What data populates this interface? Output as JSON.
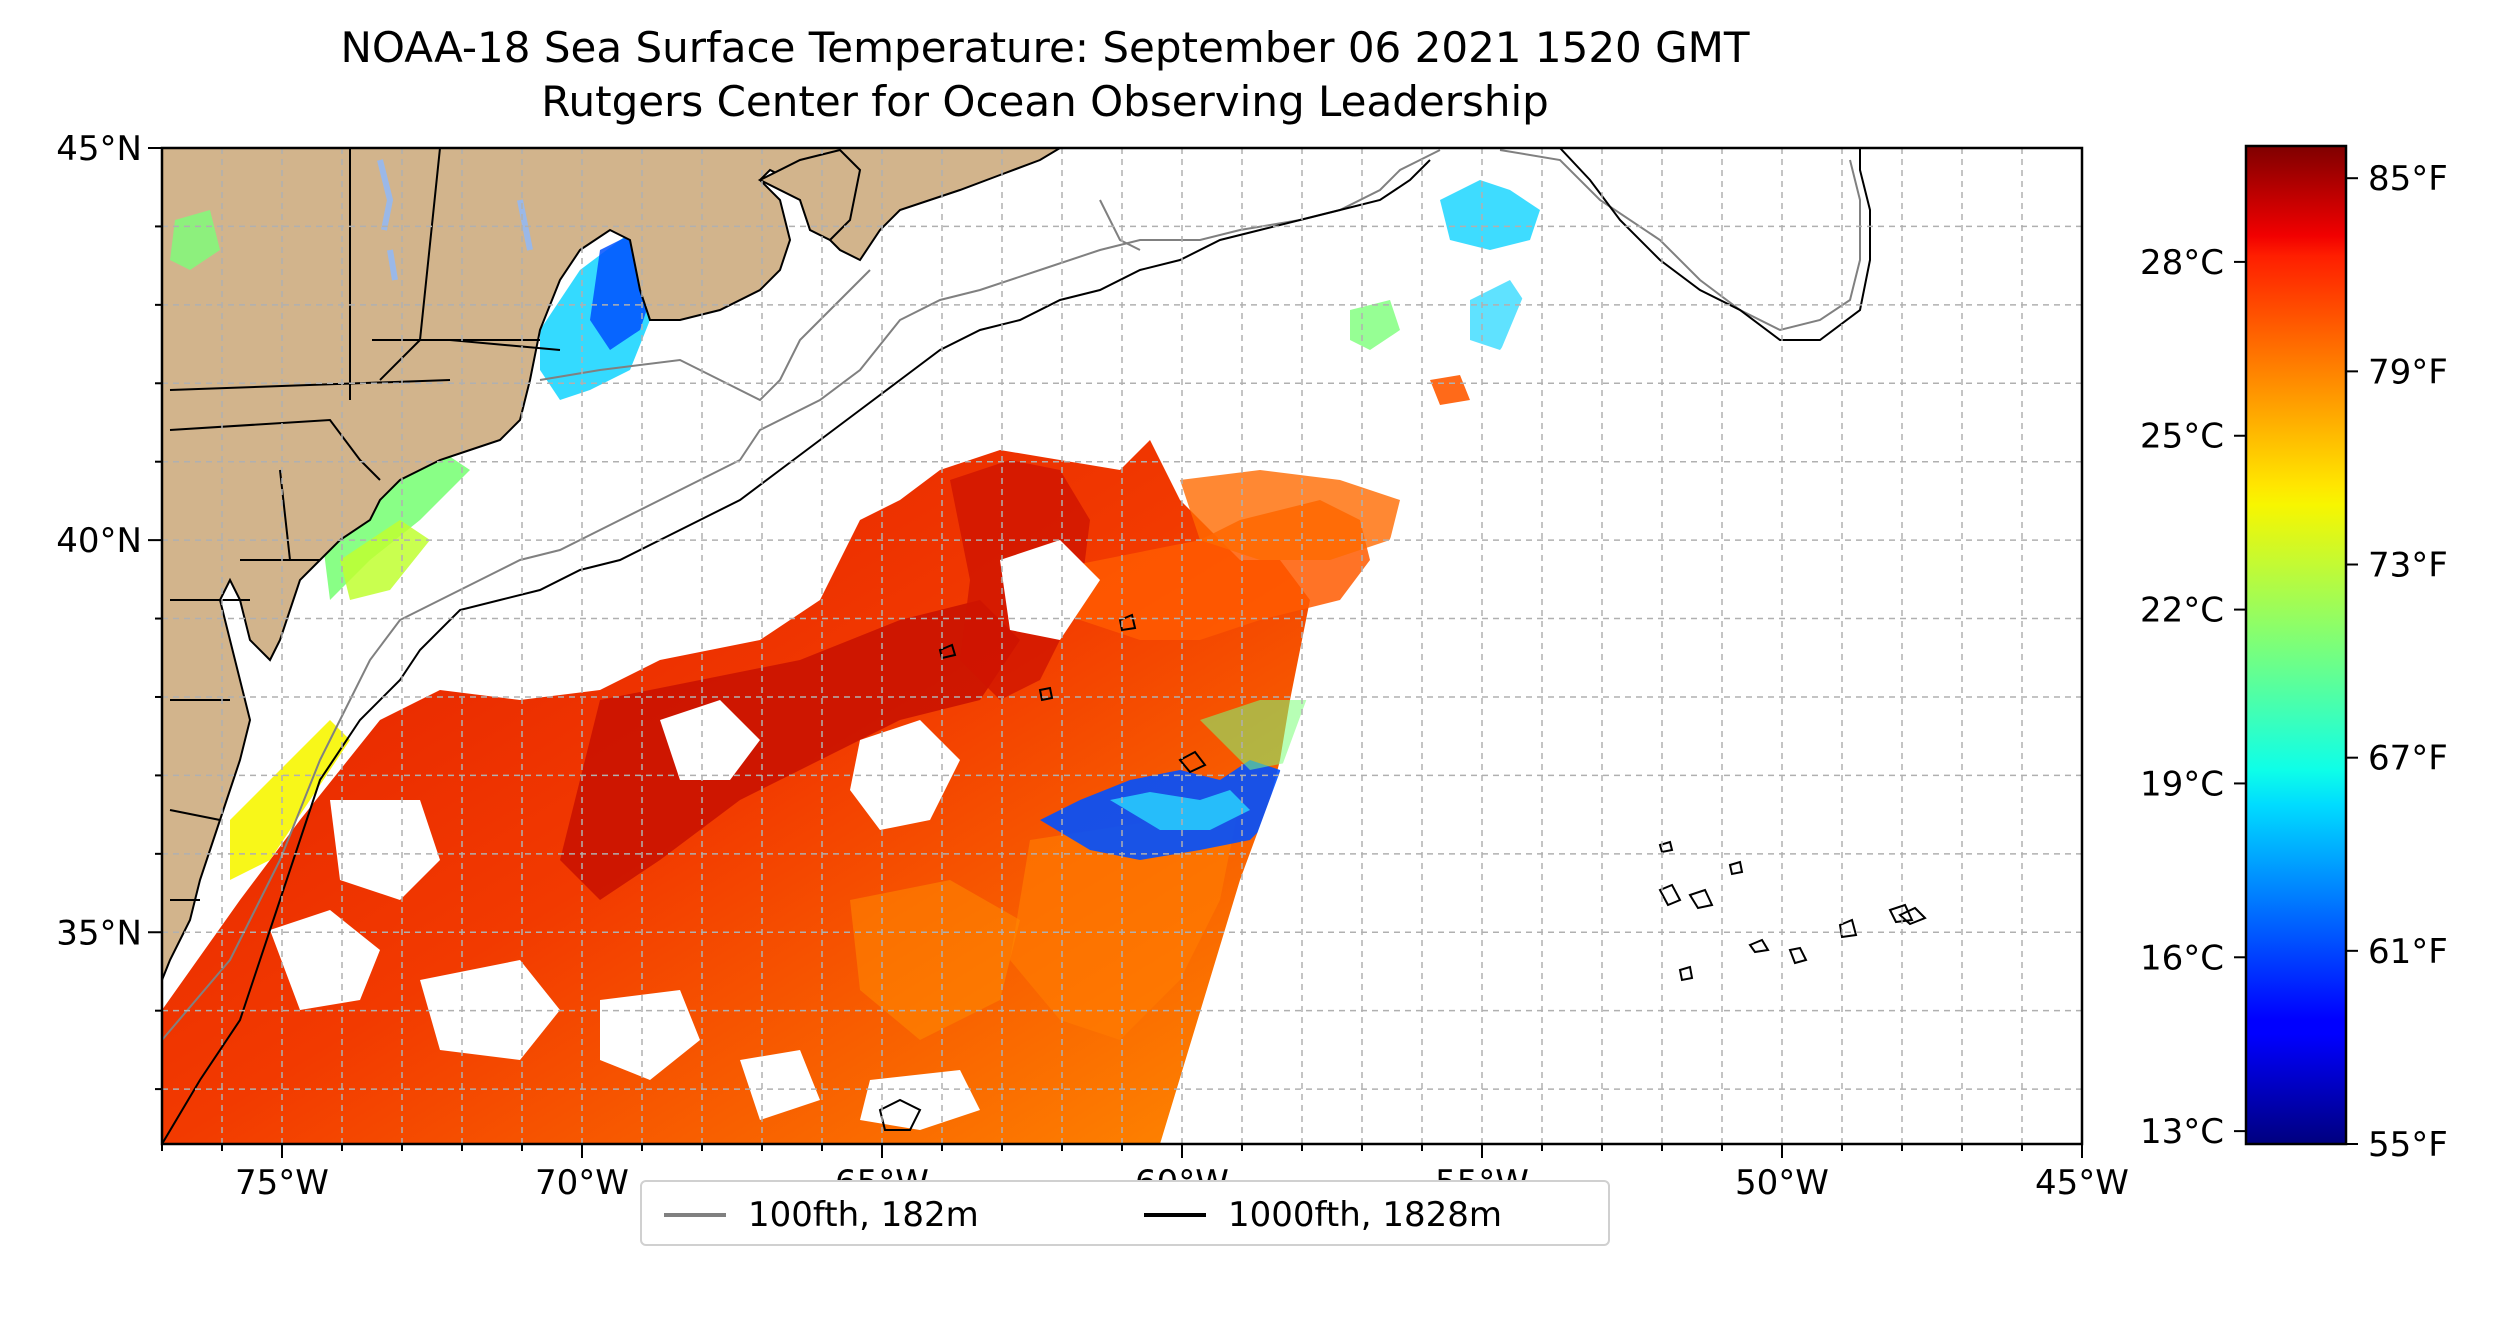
{
  "title": "NOAA-18 Sea Surface Temperature: September 06 2021 1520 GMT",
  "subtitle": "Rutgers Center for Ocean Observing Leadership",
  "map": {
    "lon_range": [
      -77,
      -45
    ],
    "lat_range": [
      32.3,
      45
    ],
    "lon_ticks": [
      {
        "value": -75,
        "label": "75°W"
      },
      {
        "value": -70,
        "label": "70°W"
      },
      {
        "value": -65,
        "label": "65°W"
      },
      {
        "value": -60,
        "label": "60°W"
      },
      {
        "value": -55,
        "label": "55°W"
      },
      {
        "value": -50,
        "label": "50°W"
      },
      {
        "value": -45,
        "label": "45°W"
      }
    ],
    "lat_ticks": [
      {
        "value": 45,
        "label": "45°N"
      },
      {
        "value": 40,
        "label": "40°N"
      },
      {
        "value": 35,
        "label": "35°N"
      }
    ],
    "grid": true,
    "land_color": "#d2b48c",
    "ocean_color": "#ffffff"
  },
  "legend": {
    "placement": "bottom-center",
    "items": [
      {
        "label": "100fth, 182m",
        "color": "#808080"
      },
      {
        "label": "1000fth, 1828m",
        "color": "#000000"
      }
    ]
  },
  "colorbar": {
    "colormap": "jet",
    "range_f": [
      55,
      86
    ],
    "f_ticks": [
      {
        "value": 85,
        "label": "85°F"
      },
      {
        "value": 79,
        "label": "79°F"
      },
      {
        "value": 73,
        "label": "73°F"
      },
      {
        "value": 67,
        "label": "67°F"
      },
      {
        "value": 61,
        "label": "61°F"
      },
      {
        "value": 55,
        "label": "55°F"
      }
    ],
    "c_ticks": [
      {
        "value": 28,
        "label": "28°C"
      },
      {
        "value": 25,
        "label": "25°C"
      },
      {
        "value": 22,
        "label": "22°C"
      },
      {
        "value": 19,
        "label": "19°C"
      },
      {
        "value": 16,
        "label": "16°C"
      },
      {
        "value": 13,
        "label": "13°C"
      }
    ]
  }
}
